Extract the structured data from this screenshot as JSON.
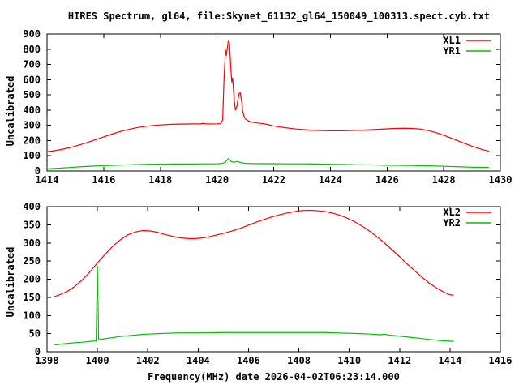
{
  "page": {
    "background": "#ffffff",
    "frame_color": "#000000",
    "text_color": "#000000"
  },
  "title": "HIRES Spectrum, gl64, file:Skynet_61132_gl64_150049_100313.spect.cyb.txt",
  "xlabel": "Frequency(MHz) date 2026-04-02T06:23:14.000",
  "chart_data": [
    {
      "type": "line",
      "ylabel": "Uncalibrated",
      "xlim": [
        1414,
        1430
      ],
      "ylim": [
        0,
        900
      ],
      "xticks": [
        1414,
        1416,
        1418,
        1420,
        1422,
        1424,
        1426,
        1428,
        1430
      ],
      "yticks": [
        0,
        100,
        200,
        300,
        400,
        500,
        600,
        700,
        800,
        900
      ],
      "grid": false,
      "legend_position": "top-right-inside",
      "series": [
        {
          "name": "XL1",
          "color": "#ff0000",
          "points": [
            [
              1414.0,
              127
            ],
            [
              1414.2,
              131
            ],
            [
              1414.5,
              141
            ],
            [
              1414.8,
              153
            ],
            [
              1415.1,
              169
            ],
            [
              1415.4,
              186
            ],
            [
              1415.7,
              205
            ],
            [
              1416.0,
              224
            ],
            [
              1416.3,
              243
            ],
            [
              1416.6,
              260
            ],
            [
              1416.9,
              274
            ],
            [
              1417.2,
              286
            ],
            [
              1417.5,
              294
            ],
            [
              1417.8,
              300
            ],
            [
              1418.1,
              304
            ],
            [
              1418.4,
              307
            ],
            [
              1418.7,
              308
            ],
            [
              1419.0,
              309
            ],
            [
              1419.2,
              310
            ],
            [
              1419.4,
              309
            ],
            [
              1419.5,
              313
            ],
            [
              1419.6,
              310
            ],
            [
              1419.8,
              309
            ],
            [
              1420.0,
              310
            ],
            [
              1420.1,
              311
            ],
            [
              1420.15,
              315
            ],
            [
              1420.2,
              340
            ],
            [
              1420.25,
              620
            ],
            [
              1420.3,
              795
            ],
            [
              1420.33,
              760
            ],
            [
              1420.36,
              800
            ],
            [
              1420.4,
              858
            ],
            [
              1420.44,
              840
            ],
            [
              1420.48,
              700
            ],
            [
              1420.52,
              585
            ],
            [
              1420.55,
              610
            ],
            [
              1420.6,
              480
            ],
            [
              1420.65,
              400
            ],
            [
              1420.7,
              425
            ],
            [
              1420.74,
              470
            ],
            [
              1420.78,
              508
            ],
            [
              1420.82,
              515
            ],
            [
              1420.86,
              470
            ],
            [
              1420.9,
              400
            ],
            [
              1420.95,
              360
            ],
            [
              1421.0,
              342
            ],
            [
              1421.1,
              330
            ],
            [
              1421.2,
              322
            ],
            [
              1421.4,
              316
            ],
            [
              1421.6,
              312
            ],
            [
              1421.8,
              305
            ],
            [
              1422.0,
              296
            ],
            [
              1422.2,
              290
            ],
            [
              1422.4,
              285
            ],
            [
              1422.6,
              280
            ],
            [
              1422.8,
              276
            ],
            [
              1423.0,
              273
            ],
            [
              1423.3,
              269
            ],
            [
              1423.6,
              266
            ],
            [
              1424.0,
              264
            ],
            [
              1424.4,
              264
            ],
            [
              1424.8,
              266
            ],
            [
              1425.2,
              269
            ],
            [
              1425.6,
              273
            ],
            [
              1426.0,
              277
            ],
            [
              1426.3,
              280
            ],
            [
              1426.6,
              281
            ],
            [
              1426.9,
              280
            ],
            [
              1427.2,
              275
            ],
            [
              1427.5,
              264
            ],
            [
              1427.8,
              248
            ],
            [
              1428.1,
              228
            ],
            [
              1428.4,
              206
            ],
            [
              1428.7,
              184
            ],
            [
              1429.0,
              163
            ],
            [
              1429.2,
              150
            ],
            [
              1429.4,
              139
            ],
            [
              1429.6,
              130
            ]
          ]
        },
        {
          "name": "YR1",
          "color": "#00c000",
          "points": [
            [
              1414.0,
              14
            ],
            [
              1414.4,
              18
            ],
            [
              1414.8,
              23
            ],
            [
              1415.2,
              28
            ],
            [
              1415.6,
              32
            ],
            [
              1416.0,
              35
            ],
            [
              1416.4,
              38
            ],
            [
              1416.8,
              40
            ],
            [
              1417.2,
              42
            ],
            [
              1417.6,
              44
            ],
            [
              1418.0,
              45
            ],
            [
              1418.5,
              46
            ],
            [
              1419.0,
              46
            ],
            [
              1419.5,
              47
            ],
            [
              1420.0,
              47
            ],
            [
              1420.2,
              50
            ],
            [
              1420.3,
              58
            ],
            [
              1420.35,
              72
            ],
            [
              1420.4,
              82
            ],
            [
              1420.45,
              74
            ],
            [
              1420.5,
              62
            ],
            [
              1420.6,
              57
            ],
            [
              1420.7,
              63
            ],
            [
              1420.8,
              58
            ],
            [
              1420.9,
              53
            ],
            [
              1421.0,
              50
            ],
            [
              1421.2,
              49
            ],
            [
              1421.6,
              48
            ],
            [
              1422.0,
              48
            ],
            [
              1422.5,
              47
            ],
            [
              1423.0,
              47
            ],
            [
              1423.5,
              46
            ],
            [
              1424.0,
              44
            ],
            [
              1424.5,
              43
            ],
            [
              1425.0,
              41
            ],
            [
              1425.5,
              40
            ],
            [
              1426.0,
              38
            ],
            [
              1426.5,
              37
            ],
            [
              1427.0,
              36
            ],
            [
              1427.5,
              34
            ],
            [
              1428.0,
              31
            ],
            [
              1428.5,
              28
            ],
            [
              1429.0,
              25
            ],
            [
              1429.3,
              24
            ],
            [
              1429.6,
              23
            ]
          ]
        }
      ]
    },
    {
      "type": "line",
      "ylabel": "Uncalibrated",
      "xlim": [
        1398,
        1416
      ],
      "ylim": [
        0,
        400
      ],
      "xticks": [
        1398,
        1400,
        1402,
        1404,
        1406,
        1408,
        1410,
        1412,
        1414,
        1416
      ],
      "yticks": [
        0,
        50,
        100,
        150,
        200,
        250,
        300,
        350,
        400
      ],
      "grid": false,
      "legend_position": "top-right-inside",
      "series": [
        {
          "name": "XL2",
          "color": "#ff0000",
          "points": [
            [
              1398.3,
              152
            ],
            [
              1398.5,
              157
            ],
            [
              1398.8,
              166
            ],
            [
              1399.1,
              180
            ],
            [
              1399.4,
              198
            ],
            [
              1399.7,
              220
            ],
            [
              1400.0,
              245
            ],
            [
              1400.3,
              268
            ],
            [
              1400.6,
              290
            ],
            [
              1400.9,
              308
            ],
            [
              1401.2,
              322
            ],
            [
              1401.5,
              330
            ],
            [
              1401.8,
              334
            ],
            [
              1402.1,
              333
            ],
            [
              1402.4,
              329
            ],
            [
              1402.7,
              323
            ],
            [
              1403.0,
              318
            ],
            [
              1403.3,
              314
            ],
            [
              1403.6,
              312
            ],
            [
              1403.9,
              312
            ],
            [
              1404.2,
              314
            ],
            [
              1404.5,
              318
            ],
            [
              1404.8,
              323
            ],
            [
              1405.1,
              328
            ],
            [
              1405.4,
              334
            ],
            [
              1405.7,
              341
            ],
            [
              1406.0,
              349
            ],
            [
              1406.3,
              357
            ],
            [
              1406.6,
              364
            ],
            [
              1406.9,
              371
            ],
            [
              1407.2,
              377
            ],
            [
              1407.5,
              382
            ],
            [
              1407.8,
              386
            ],
            [
              1408.1,
              389
            ],
            [
              1408.4,
              390
            ],
            [
              1408.7,
              389
            ],
            [
              1409.0,
              387
            ],
            [
              1409.3,
              383
            ],
            [
              1409.6,
              377
            ],
            [
              1409.9,
              369
            ],
            [
              1410.2,
              359
            ],
            [
              1410.5,
              347
            ],
            [
              1410.8,
              333
            ],
            [
              1411.1,
              317
            ],
            [
              1411.4,
              300
            ],
            [
              1411.7,
              281
            ],
            [
              1412.0,
              262
            ],
            [
              1412.3,
              242
            ],
            [
              1412.6,
              223
            ],
            [
              1412.9,
              205
            ],
            [
              1413.2,
              188
            ],
            [
              1413.5,
              174
            ],
            [
              1413.8,
              163
            ],
            [
              1414.0,
              157
            ],
            [
              1414.15,
              156
            ]
          ]
        },
        {
          "name": "YR2",
          "color": "#00c000",
          "points": [
            [
              1398.3,
              19
            ],
            [
              1398.7,
              22
            ],
            [
              1399.1,
              25
            ],
            [
              1399.5,
              27
            ],
            [
              1399.8,
              29
            ],
            [
              1399.95,
              30
            ],
            [
              1400.0,
              236
            ],
            [
              1400.05,
              33
            ],
            [
              1400.3,
              36
            ],
            [
              1400.6,
              39
            ],
            [
              1400.9,
              42
            ],
            [
              1401.2,
              44
            ],
            [
              1401.5,
              46
            ],
            [
              1401.8,
              48
            ],
            [
              1402.1,
              49
            ],
            [
              1402.4,
              50
            ],
            [
              1402.8,
              51
            ],
            [
              1403.2,
              52
            ],
            [
              1404.0,
              52
            ],
            [
              1405.0,
              53
            ],
            [
              1406.0,
              53
            ],
            [
              1407.0,
              53
            ],
            [
              1408.0,
              53
            ],
            [
              1409.0,
              53
            ],
            [
              1409.5,
              52
            ],
            [
              1410.0,
              51
            ],
            [
              1410.4,
              50
            ],
            [
              1410.8,
              49
            ],
            [
              1411.2,
              47
            ],
            [
              1411.4,
              48
            ],
            [
              1411.6,
              46
            ],
            [
              1412.0,
              43
            ],
            [
              1412.4,
              40
            ],
            [
              1412.8,
              37
            ],
            [
              1413.2,
              34
            ],
            [
              1413.6,
              31
            ],
            [
              1414.0,
              29
            ],
            [
              1414.15,
              29
            ]
          ]
        }
      ]
    }
  ]
}
